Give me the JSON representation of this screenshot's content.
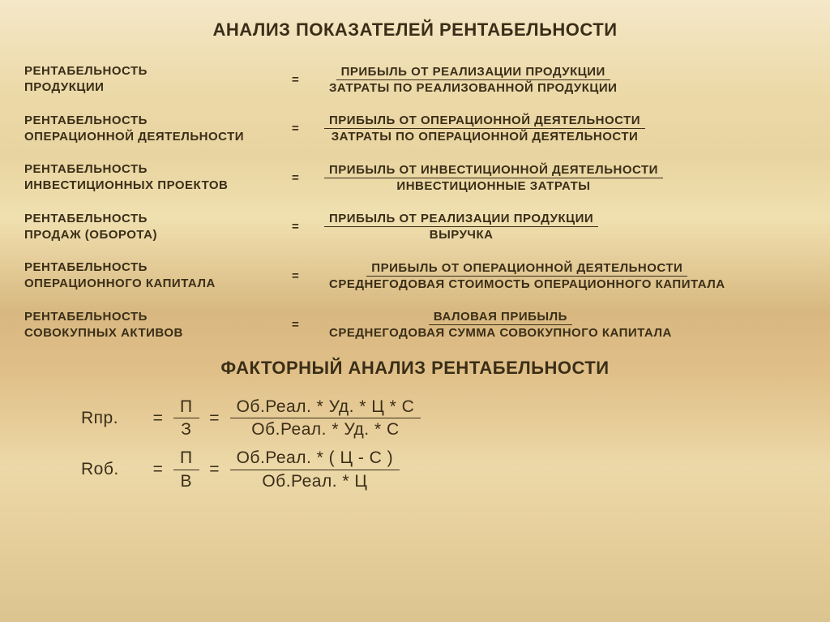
{
  "colors": {
    "text": "#3a2e18",
    "bg_top": "#f5e8c8",
    "bg_mid": "#d8b880",
    "bg_bottom": "#dcc490"
  },
  "typography": {
    "title_fontsize_pt": 17,
    "body_fontsize_pt": 11,
    "factor_fontsize_pt": 16,
    "font_family": "Arial"
  },
  "title": "АНАЛИЗ ПОКАЗАТЕЛЕЙ РЕНТАБЕЛЬНОСТИ",
  "formulas": [
    {
      "left1": "РЕНТАБЕЛЬНОСТЬ",
      "left2": "ПРОДУКЦИИ",
      "numer": "ПРИБЫЛЬ ОТ РЕАЛИЗАЦИИ ПРОДУКЦИИ",
      "denom": "ЗАТРАТЫ ПО РЕАЛИЗОВАННОЙ ПРОДУКЦИИ"
    },
    {
      "left1": "РЕНТАБЕЛЬНОСТЬ",
      "left2": "ОПЕРАЦИОННОЙ ДЕЯТЕЛЬНОСТИ",
      "numer": "ПРИБЫЛЬ ОТ ОПЕРАЦИОННОЙ ДЕЯТЕЛЬНОСТИ",
      "denom": "ЗАТРАТЫ ПО ОПЕРАЦИОННОЙ ДЕЯТЕЛЬНОСТИ"
    },
    {
      "left1": "РЕНТАБЕЛЬНОСТЬ",
      "left2": "ИНВЕСТИЦИОННЫХ ПРОЕКТОВ",
      "numer": "ПРИБЫЛЬ ОТ ИНВЕСТИЦИОННОЙ ДЕЯТЕЛЬНОСТИ",
      "denom": "ИНВЕСТИЦИОННЫЕ ЗАТРАТЫ"
    },
    {
      "left1": "РЕНТАБЕЛЬНОСТЬ",
      "left2": "ПРОДАЖ (ОБОРОТА)",
      "numer": "ПРИБЫЛЬ ОТ РЕАЛИЗАЦИИ ПРОДУКЦИИ",
      "denom": "ВЫРУЧКА"
    },
    {
      "left1": "РЕНТАБЕЛЬНОСТЬ",
      "left2": "ОПЕРАЦИОННОГО КАПИТАЛА",
      "numer": "ПРИБЫЛЬ ОТ ОПЕРАЦИОННОЙ ДЕЯТЕЛЬНОСТИ",
      "denom": "СРЕДНЕГОДОВАЯ СТОИМОСТЬ ОПЕРАЦИОННОГО КАПИТАЛА"
    },
    {
      "left1": "РЕНТАБЕЛЬНОСТЬ",
      "left2": "СОВОКУПНЫХ АКТИВОВ",
      "numer": "ВАЛОВАЯ ПРИБЫЛЬ",
      "denom": "СРЕДНЕГОДОВАЯ СУММА СОВОКУПНОГО КАПИТАЛА"
    }
  ],
  "subtitle": "ФАКТОРНЫЙ АНАЛИЗ РЕНТАБЕЛЬНОСТИ",
  "factor": {
    "row1": {
      "lhs": "Rпр.",
      "mid_num": "П",
      "mid_den": "З",
      "rhs_num": "Об.Реал. * Уд. * Ц * С",
      "rhs_den": "Об.Реал. * Уд. * С"
    },
    "row2": {
      "lhs": "Rоб.",
      "mid_num": "П",
      "mid_den": "В",
      "rhs_num": "Об.Реал. * ( Ц - С )",
      "rhs_den": "Об.Реал. * Ц"
    }
  },
  "eq": "="
}
